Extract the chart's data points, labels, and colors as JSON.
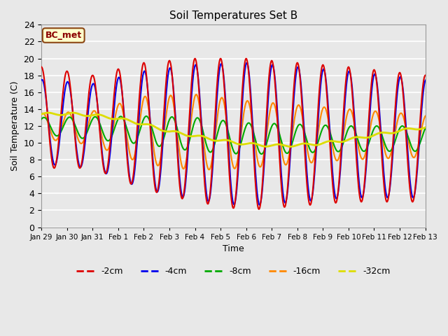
{
  "title": "Soil Temperatures Set B",
  "xlabel": "Time",
  "ylabel": "Soil Temperature (C)",
  "annotation": "BC_met",
  "ylim": [
    0,
    24
  ],
  "yticks": [
    0,
    2,
    4,
    6,
    8,
    10,
    12,
    14,
    16,
    18,
    20,
    22,
    24
  ],
  "xtick_labels": [
    "Jan 29",
    "Jan 30",
    "Jan 31",
    "Feb 1",
    "Feb 2",
    "Feb 3",
    "Feb 4",
    "Feb 5",
    "Feb 6",
    "Feb 7",
    "Feb 8",
    "Feb 9",
    "Feb 10",
    "Feb 11",
    "Feb 12",
    "Feb 13"
  ],
  "series": {
    "-2cm": {
      "color": "#DD0000",
      "lw": 1.5
    },
    "-4cm": {
      "color": "#0000EE",
      "lw": 1.5
    },
    "-8cm": {
      "color": "#00AA00",
      "lw": 1.5
    },
    "-16cm": {
      "color": "#FF8800",
      "lw": 1.5
    },
    "-32cm": {
      "color": "#DDDD00",
      "lw": 2.0
    }
  },
  "bg_color": "#E8E8E8",
  "plot_bg": "#E8E8E8",
  "grid_color": "#FFFFFF",
  "n_days": 15,
  "pts_per_day": 48
}
